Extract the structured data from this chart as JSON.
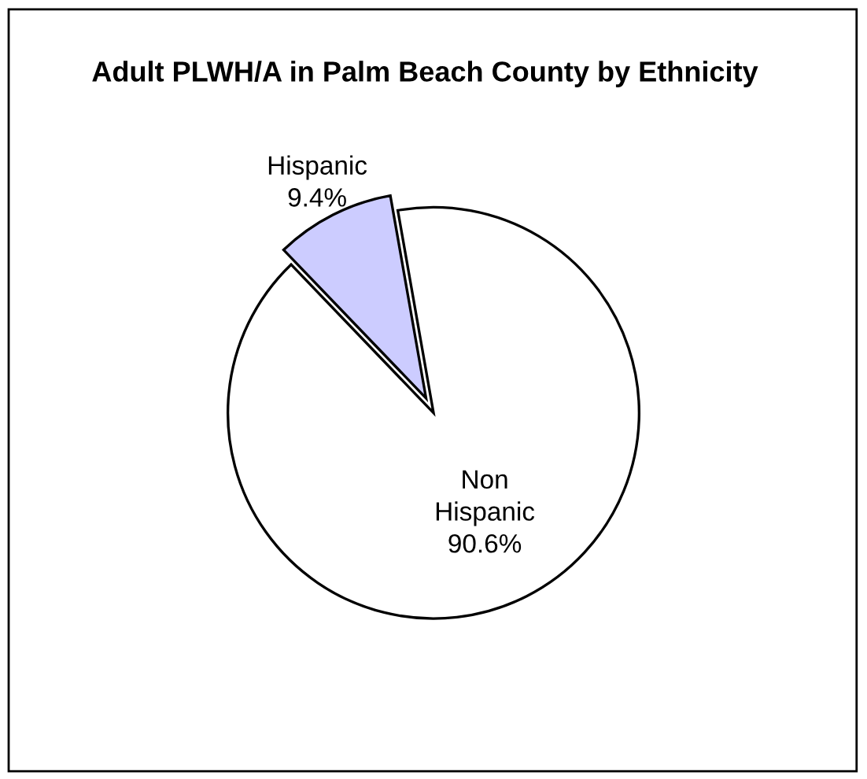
{
  "chart_data": {
    "type": "pie",
    "title": "Adult PLWH/A in Palm Beach County by Ethnicity",
    "categories": [
      "Hispanic",
      "Non Hispanic"
    ],
    "values": [
      9.4,
      90.6
    ],
    "colors": [
      "#ccccff",
      "#ffffff"
    ],
    "value_labels": [
      "9.4%",
      "90.6%"
    ],
    "legend": false
  }
}
